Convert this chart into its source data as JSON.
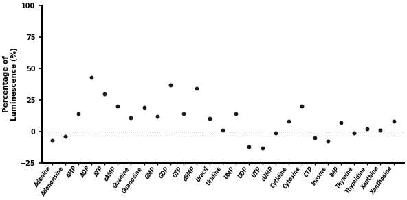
{
  "categories": [
    "Adenine",
    "Adenonsine",
    "AMP",
    "ADP",
    "ATP",
    "cAMP",
    "Guanine",
    "Guanosine",
    "GMP",
    "GDP",
    "GTP",
    "cGMP",
    "Uracil",
    "Uridine",
    "UMP",
    "UDP",
    "UTP",
    "cUMP",
    "Cytidine",
    "Cytosine",
    "CTP",
    "Inosine",
    "IMP",
    "Thymine",
    "Thymidine",
    "Xanthine",
    "Xanthosine"
  ],
  "values": [
    -7,
    -4,
    14,
    43,
    30,
    20,
    11,
    19,
    12,
    37,
    14,
    34,
    10,
    1,
    14,
    -12,
    -13,
    -1,
    8,
    20,
    -5,
    -8,
    7,
    -1,
    2,
    1,
    8
  ],
  "ylabel": "Percentage of\nLuminescence (%)",
  "ylim": [
    -25,
    100
  ],
  "yticks": [
    -25,
    0,
    25,
    50,
    75,
    100
  ],
  "dot_color": "#1a1a1a",
  "dot_size": 18,
  "hline_y": 0,
  "hline_style": "dotted",
  "hline_color": "#555555",
  "tick_label_fontsize": 5.5,
  "ylabel_fontsize": 7.5,
  "ytick_fontsize": 7
}
